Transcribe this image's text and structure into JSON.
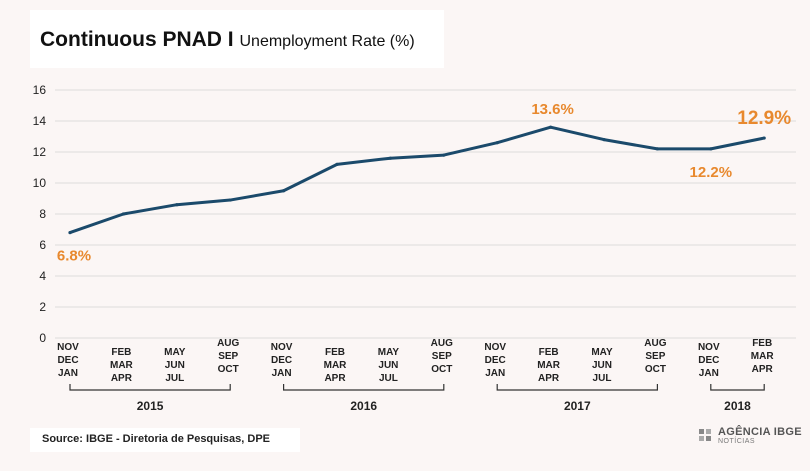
{
  "title": {
    "main": "Continuous PNAD I",
    "sub": "Unemployment Rate (%)"
  },
  "chart_data": {
    "type": "line",
    "y_ticks": [
      "16",
      "14",
      "12",
      "10",
      "8",
      "6",
      "4",
      "2",
      "0"
    ],
    "ylim": [
      0,
      16
    ],
    "categories": [
      [
        "NOV",
        "DEC",
        "JAN"
      ],
      [
        "FEB",
        "MAR",
        "APR"
      ],
      [
        "MAY",
        "JUN",
        "JUL"
      ],
      [
        "AUG",
        "SEP",
        "OCT"
      ],
      [
        "NOV",
        "DEC",
        "JAN"
      ],
      [
        "FEB",
        "MAR",
        "APR"
      ],
      [
        "MAY",
        "JUN",
        "JUL"
      ],
      [
        "AUG",
        "SEP",
        "OCT"
      ],
      [
        "NOV",
        "DEC",
        "JAN"
      ],
      [
        "FEB",
        "MAR",
        "APR"
      ],
      [
        "MAY",
        "JUN",
        "JUL"
      ],
      [
        "AUG",
        "SEP",
        "OCT"
      ],
      [
        "NOV",
        "DEC",
        "JAN"
      ],
      [
        "FEB",
        "MAR",
        "APR"
      ]
    ],
    "values": [
      6.8,
      8.0,
      8.6,
      8.9,
      9.5,
      11.2,
      11.6,
      11.8,
      12.6,
      13.6,
      12.8,
      12.2,
      12.2,
      12.9
    ],
    "line_color": "#1b4a6b",
    "label_color": "#e8892e",
    "annotations": [
      {
        "index": 0,
        "text": "6.8%"
      },
      {
        "index": 9,
        "text": "13.6%"
      },
      {
        "index": 12,
        "text": "12.2%"
      },
      {
        "index": 13,
        "text": "12.9%"
      }
    ],
    "years": [
      {
        "label": "2015",
        "from": 0,
        "to": 3
      },
      {
        "label": "2016",
        "from": 4,
        "to": 7
      },
      {
        "label": "2017",
        "from": 8,
        "to": 11
      },
      {
        "label": "2018",
        "from": 12,
        "to": 13
      }
    ],
    "grid": true
  },
  "source": "Source: IBGE - Diretoria de Pesquisas, DPE",
  "logo": {
    "brand": "AGÊNCIA IBGE",
    "sub": "NOTÍCIAS"
  }
}
